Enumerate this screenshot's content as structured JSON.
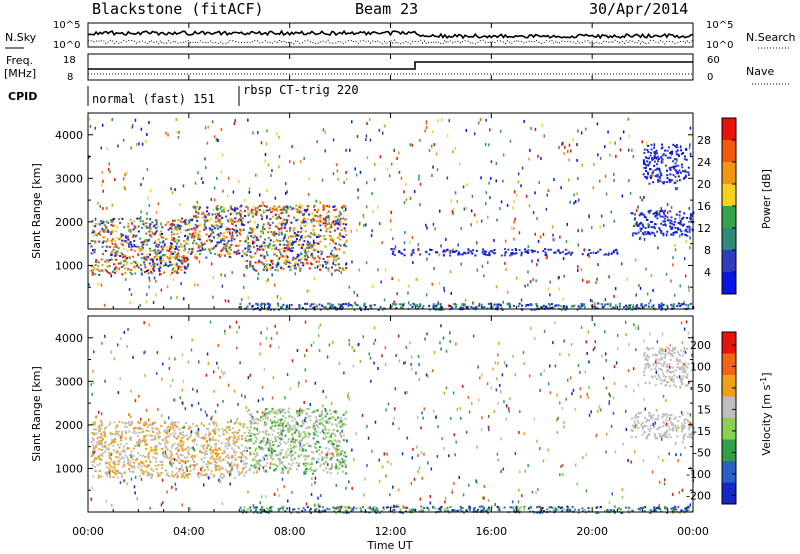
{
  "header": {
    "station": "Blackstone (fitACF)",
    "beam": "Beam 23",
    "date": "30/Apr/2014"
  },
  "noise_panel": {
    "left_label": "N.Sky",
    "right_label": "N.Search",
    "left_ticks": [
      "10^5",
      "10^0"
    ],
    "right_ticks": [
      "10^5",
      "10^0"
    ]
  },
  "freq_panel": {
    "left_label_1": "Freq.",
    "left_label_2": "[MHz]",
    "right_label": "Nave",
    "left_ticks": [
      "18",
      "8"
    ],
    "right_ticks": [
      "60",
      "0"
    ]
  },
  "cpid_panel": {
    "label": "CPID",
    "modes": [
      {
        "text": "normal (fast) 151"
      },
      {
        "text": "rbsp CT-trig 220"
      }
    ]
  },
  "chart_data": [
    {
      "type": "heatmap",
      "name": "power",
      "ylabel": "Slant Range [km]",
      "y_ticks": [
        "1000",
        "2000",
        "3000",
        "4000"
      ],
      "ylim": [
        0,
        4500
      ],
      "x_ticks": [
        "00:00",
        "04:00",
        "08:00",
        "12:00",
        "16:00",
        "20:00",
        "00:00"
      ],
      "xlim_hours": [
        0,
        24
      ],
      "colorbar_label": "Power [dB]",
      "colorbar_ticks": [
        "4",
        "8",
        "12",
        "16",
        "20",
        "24",
        "28"
      ],
      "colorbar_colors": [
        "#0a14e6",
        "#2e3cc0",
        "#2f8a78",
        "#36a34a",
        "#f5d21e",
        "#f09614",
        "#f05a0a",
        "#e6140a"
      ],
      "regions": [
        {
          "t": [
            0.1,
            4.0
          ],
          "r": [
            800,
            2100
          ],
          "level": "mixed high"
        },
        {
          "t": [
            4.0,
            6.2
          ],
          "r": [
            1200,
            2400
          ],
          "level": "mixed"
        },
        {
          "t": [
            6.2,
            10.2
          ],
          "r": [
            900,
            2400
          ],
          "level": "mixed high"
        },
        {
          "t": [
            12.0,
            21.0
          ],
          "r": [
            1250,
            1400
          ],
          "level": "low"
        },
        {
          "t": [
            21.5,
            24.0
          ],
          "r": [
            1700,
            2300
          ],
          "level": "low"
        },
        {
          "t": [
            22.0,
            23.8
          ],
          "r": [
            2900,
            3800
          ],
          "level": "low"
        }
      ]
    },
    {
      "type": "heatmap",
      "name": "velocity",
      "ylabel": "Slant Range [km]",
      "y_ticks": [
        "1000",
        "2000",
        "3000",
        "4000"
      ],
      "ylim": [
        0,
        4500
      ],
      "x_ticks": [
        "00:00",
        "04:00",
        "08:00",
        "12:00",
        "16:00",
        "20:00",
        "00:00"
      ],
      "xlabel": "Time UT",
      "xlim_hours": [
        0,
        24
      ],
      "colorbar_label": "Velocity [m s^-1]",
      "colorbar_ticks": [
        "200",
        "100",
        "50",
        "15",
        "-15",
        "-50",
        "-100",
        "-200"
      ],
      "colorbar_colors": [
        "#1428c8",
        "#2c60c8",
        "#2fa04a",
        "#8ad050",
        "#bebebe",
        "#f0a014",
        "#f06414",
        "#e6140a"
      ],
      "regions": [
        {
          "t": [
            0.1,
            6.2
          ],
          "r": [
            800,
            2100
          ],
          "level": "gray/orange"
        },
        {
          "t": [
            6.2,
            10.2
          ],
          "r": [
            900,
            2400
          ],
          "level": "green/gray"
        },
        {
          "t": [
            21.5,
            24.0
          ],
          "r": [
            1700,
            2300
          ],
          "level": "gray"
        },
        {
          "t": [
            22.0,
            23.8
          ],
          "r": [
            2900,
            3800
          ],
          "level": "gray"
        }
      ]
    }
  ]
}
